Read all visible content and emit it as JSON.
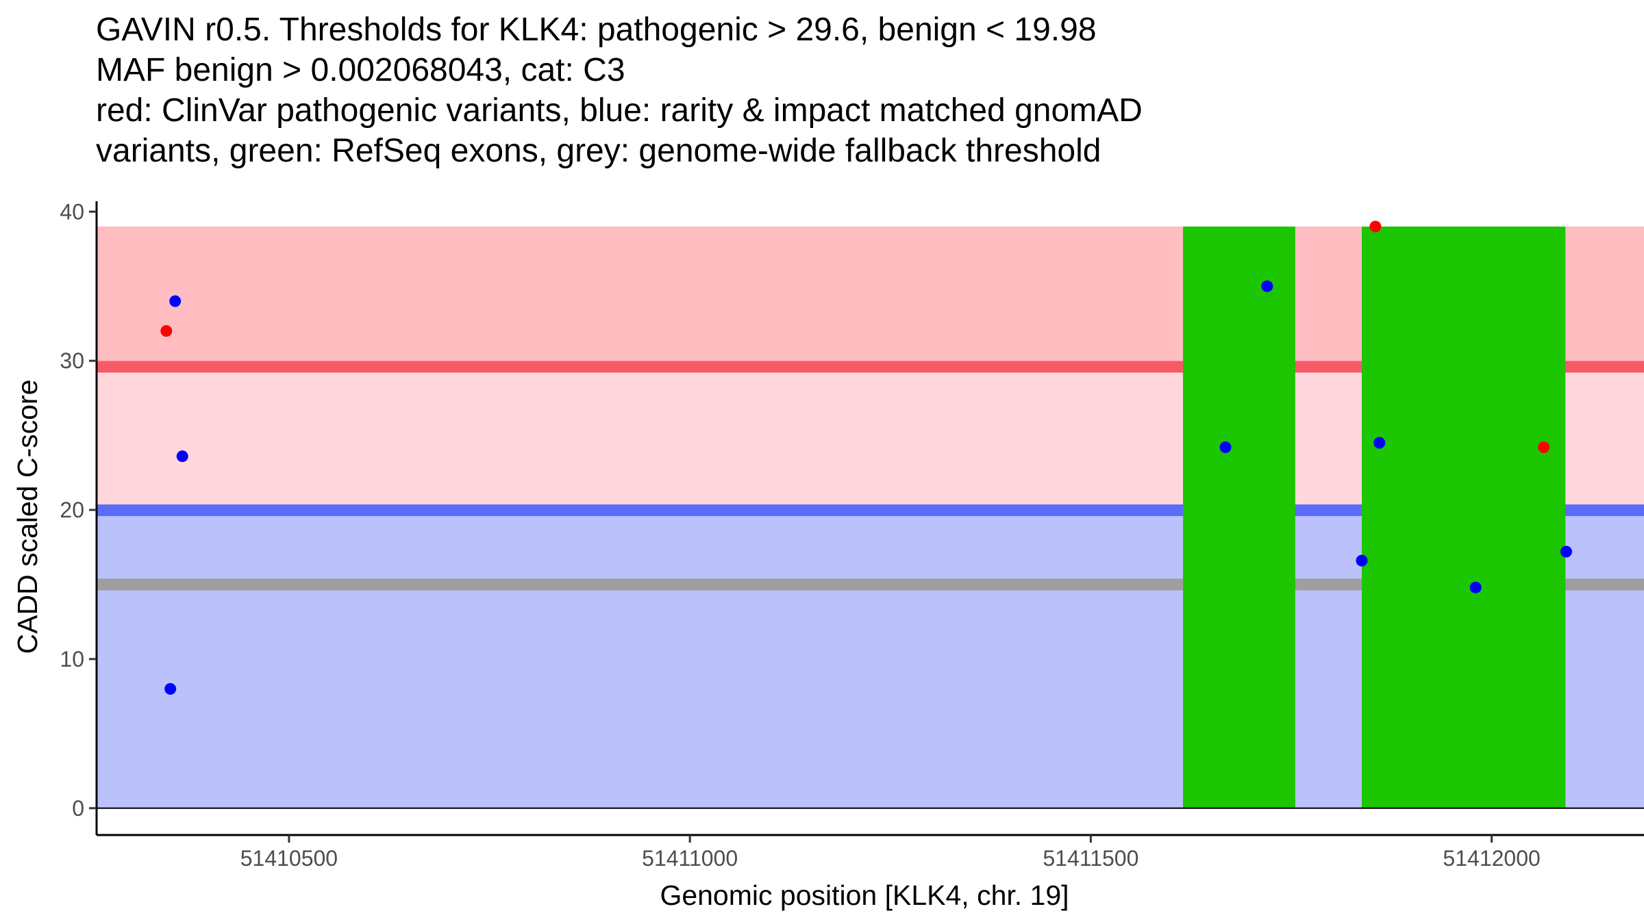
{
  "chart_data": {
    "type": "scatter",
    "title_lines": [
      "GAVIN r0.5. Thresholds for KLK4: pathogenic > 29.6, benign < 19.98",
      "MAF benign > 0.002068043, cat: C3",
      "red: ClinVar pathogenic variants, blue: rarity & impact matched gnomAD",
      "variants, green: RefSeq exons, grey: genome-wide fallback threshold"
    ],
    "xlabel": "Genomic position [KLK4, chr. 19]",
    "ylabel": "CADD scaled C-score",
    "xlim": [
      51410260,
      51412190
    ],
    "ylim": [
      -1.8,
      40.7
    ],
    "x_ticks": [
      51410500,
      51411000,
      51411500,
      51412000
    ],
    "y_ticks": [
      0,
      10,
      20,
      30,
      40
    ],
    "x_tick_labels": [
      "51410500",
      "51411000",
      "51411500",
      "51412000"
    ],
    "y_tick_labels": [
      "0",
      "10",
      "20",
      "30",
      "40"
    ],
    "bands": [
      {
        "name": "pathogenic-high",
        "ymin": 29.6,
        "ymax": 39,
        "color": "#ffbdc2"
      },
      {
        "name": "pathogenic-mid",
        "ymin": 19.98,
        "ymax": 29.6,
        "color": "#ffd7dc"
      },
      {
        "name": "benign",
        "ymin": 0,
        "ymax": 19.98,
        "color": "#bbc1fb"
      }
    ],
    "threshold_lines": [
      {
        "name": "pathogenic-threshold",
        "y": 29.6,
        "color": "#f65a66"
      },
      {
        "name": "benign-threshold",
        "y": 19.98,
        "color": "#5b6df6"
      },
      {
        "name": "fallback-threshold",
        "y": 15.0,
        "color": "#9e9e9e"
      }
    ],
    "exons": [
      {
        "start": 51411615,
        "end": 51411755
      },
      {
        "start": 51411838,
        "end": 51412092
      }
    ],
    "exon_ymax": 39,
    "series": [
      {
        "name": "ClinVar pathogenic variants",
        "color": "#ff0000",
        "points": [
          {
            "x": 51410347,
            "y": 32.0
          },
          {
            "x": 51411855,
            "y": 39.0
          },
          {
            "x": 51412065,
            "y": 24.2
          }
        ]
      },
      {
        "name": "rarity & impact matched gnomAD variants",
        "color": "#0000ff",
        "points": [
          {
            "x": 51410358,
            "y": 34.0
          },
          {
            "x": 51410367,
            "y": 23.6
          },
          {
            "x": 51410352,
            "y": 8.0
          },
          {
            "x": 51411668,
            "y": 24.2
          },
          {
            "x": 51411720,
            "y": 35.0
          },
          {
            "x": 51411860,
            "y": 24.5
          },
          {
            "x": 51411838,
            "y": 16.6
          },
          {
            "x": 51411980,
            "y": 14.8
          },
          {
            "x": 51412093,
            "y": 17.2
          }
        ]
      }
    ]
  }
}
